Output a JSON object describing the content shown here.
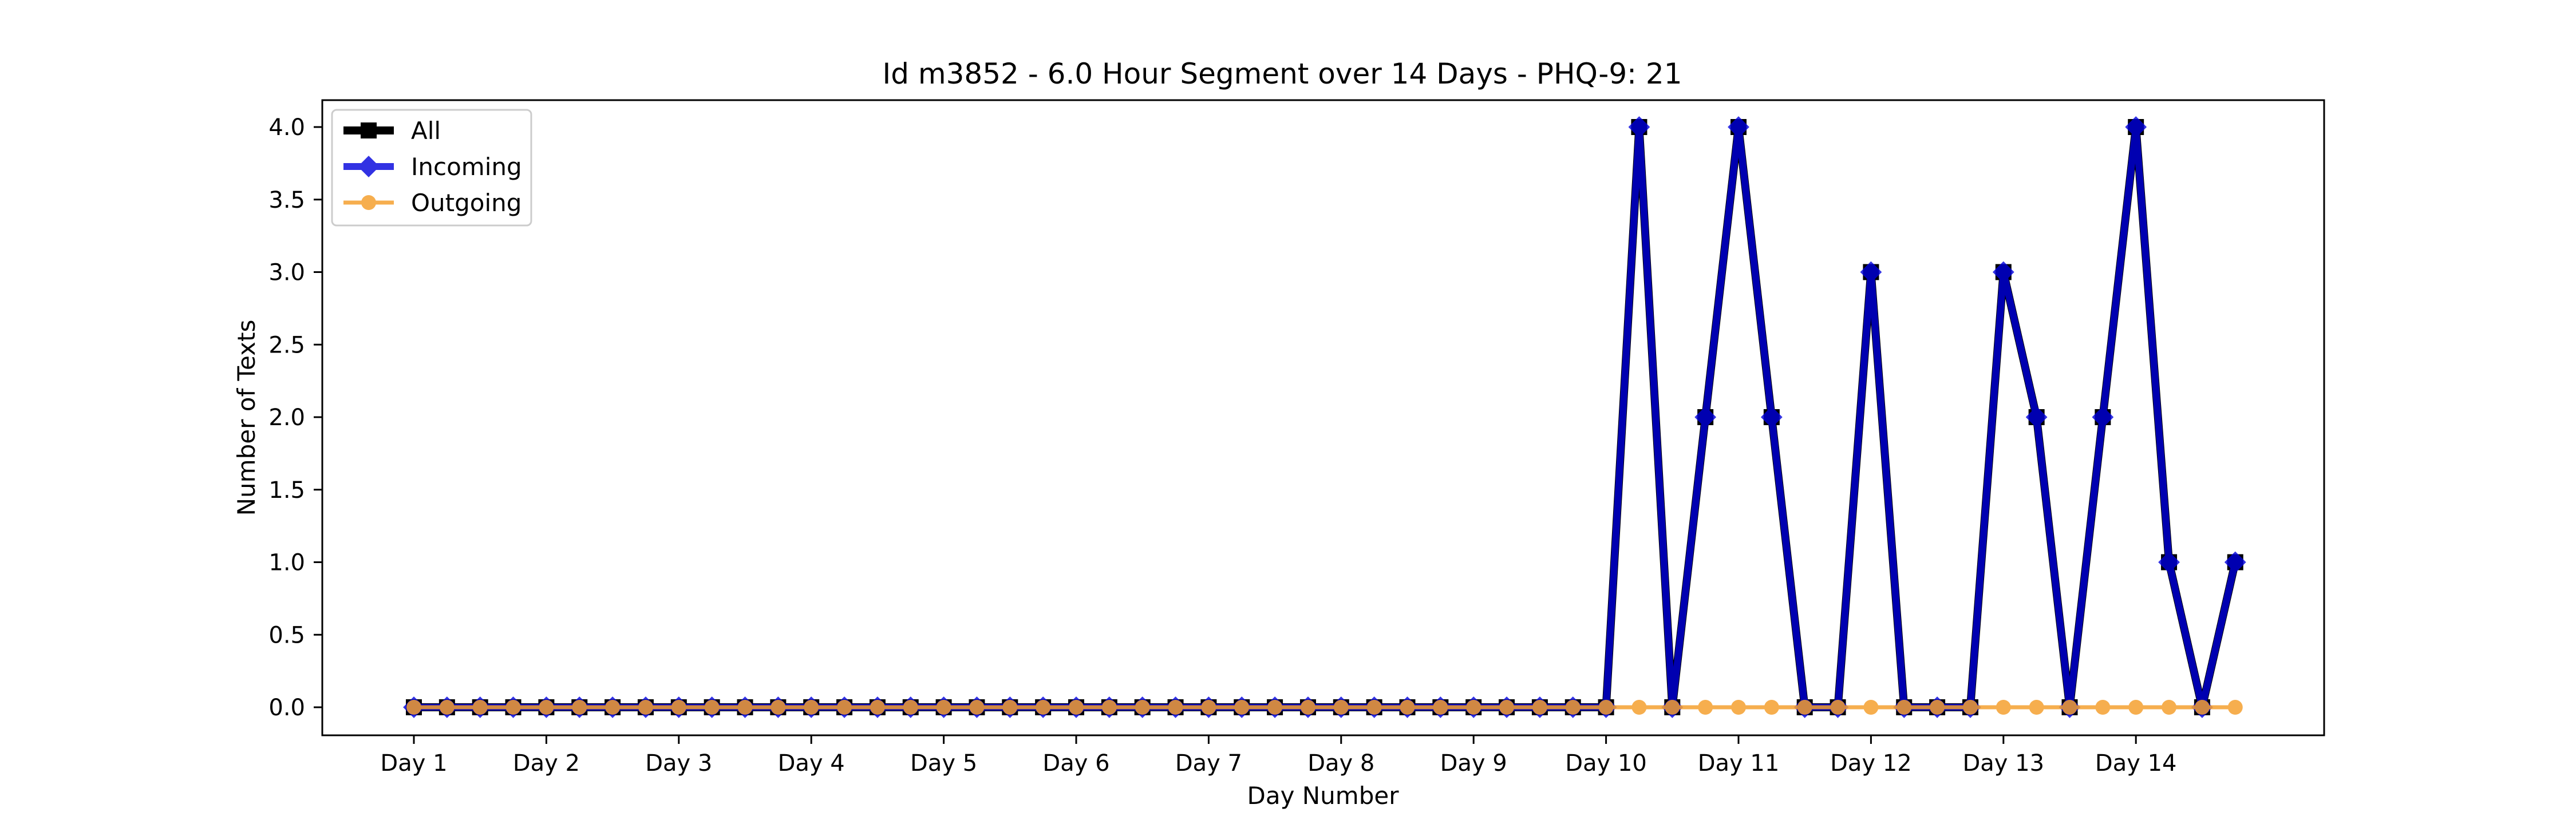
{
  "chart_data": {
    "type": "line",
    "title": "Id m3852 - 6.0 Hour Segment over 14 Days - PHQ-9: 21",
    "xlabel": "Day Number",
    "ylabel": "Number of Texts",
    "x_tick_labels": [
      "Day 1",
      "Day 2",
      "Day 3",
      "Day 4",
      "Day 5",
      "Day 6",
      "Day 7",
      "Day 8",
      "Day 9",
      "Day 10",
      "Day 11",
      "Day 12",
      "Day 13",
      "Day 14"
    ],
    "y_ticks": [
      "0.0",
      "0.5",
      "1.0",
      "1.5",
      "2.0",
      "2.5",
      "3.0",
      "3.5",
      "4.0"
    ],
    "ylim": [
      -0.2,
      4.2
    ],
    "grid": false,
    "legend_position": "top-left",
    "series": [
      {
        "name": "All",
        "color": "#000000",
        "marker": "square",
        "values": [
          0,
          0,
          0,
          0,
          0,
          0,
          0,
          0,
          0,
          0,
          0,
          0,
          0,
          0,
          0,
          0,
          0,
          0,
          0,
          0,
          0,
          0,
          0,
          0,
          0,
          0,
          0,
          0,
          0,
          0,
          0,
          0,
          0,
          0,
          0,
          0,
          0,
          4,
          0,
          2,
          4,
          2,
          0,
          0,
          3,
          0,
          0,
          0,
          3,
          2,
          0,
          2,
          4,
          1,
          0,
          1
        ]
      },
      {
        "name": "Incoming",
        "color": "#0000dd",
        "marker": "diamond",
        "values": [
          0,
          0,
          0,
          0,
          0,
          0,
          0,
          0,
          0,
          0,
          0,
          0,
          0,
          0,
          0,
          0,
          0,
          0,
          0,
          0,
          0,
          0,
          0,
          0,
          0,
          0,
          0,
          0,
          0,
          0,
          0,
          0,
          0,
          0,
          0,
          0,
          0,
          4,
          0,
          2,
          4,
          2,
          0,
          0,
          3,
          0,
          0,
          0,
          3,
          2,
          0,
          2,
          4,
          1,
          0,
          1
        ]
      },
      {
        "name": "Outgoing",
        "color": "#f5a030",
        "marker": "circle",
        "values": [
          0,
          0,
          0,
          0,
          0,
          0,
          0,
          0,
          0,
          0,
          0,
          0,
          0,
          0,
          0,
          0,
          0,
          0,
          0,
          0,
          0,
          0,
          0,
          0,
          0,
          0,
          0,
          0,
          0,
          0,
          0,
          0,
          0,
          0,
          0,
          0,
          0,
          0,
          0,
          0,
          0,
          0,
          0,
          0,
          0,
          0,
          0,
          0,
          0,
          0,
          0,
          0,
          0,
          0,
          0,
          0
        ]
      }
    ]
  }
}
